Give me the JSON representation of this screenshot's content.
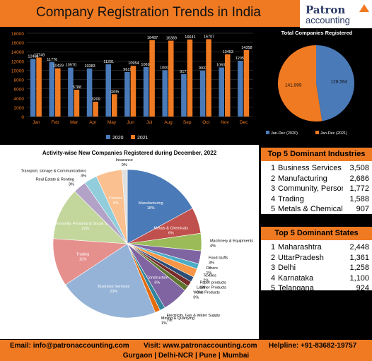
{
  "header": {
    "title": "Company Registration Trends in India",
    "logo_top": "Patron",
    "logo_bottom": "accounting"
  },
  "colors": {
    "orange": "#f07a22",
    "blue": "#4a7ab8"
  },
  "chart_data": [
    {
      "type": "bar",
      "id": "monthly",
      "categories": [
        "Jan",
        "Feb",
        "Mar",
        "Apr",
        "May",
        "Jun",
        "Jul",
        "Aug",
        "Sep",
        "Oct",
        "Nov",
        "Dec"
      ],
      "series": [
        {
          "name": "2020",
          "color": "#4a7ab8",
          "values": [
            12464,
            11776,
            10570,
            10383,
            11281,
            9619,
            10698,
            10004,
            9171,
            9933,
            10607,
            12057
          ]
        },
        {
          "name": "2021",
          "color": "#f07a22",
          "values": [
            12749,
            10429,
            5788,
            3209,
            4835,
            10954,
            16487,
            16389,
            16641,
            16707,
            13453,
            14358
          ]
        }
      ],
      "ylim": [
        0,
        18000
      ],
      "yticks": [
        0,
        2000,
        4000,
        6000,
        8000,
        10000,
        12000,
        14000,
        16000,
        18000
      ],
      "grid": true,
      "legend": "bottom"
    },
    {
      "type": "pie",
      "id": "total",
      "title": "Total Companies Registered",
      "slices": [
        {
          "label": "Jan-Dec (2020)",
          "value": 128564,
          "color": "#4a7ab8"
        },
        {
          "label": "Jan-Dec (2021)",
          "value": 141999,
          "color": "#f07a22"
        }
      ],
      "legend": "bottom"
    },
    {
      "type": "pie",
      "id": "activity",
      "title": "Activity-wise New Companies Registered during December, 2022",
      "slices": [
        {
          "label": "Manufacturing",
          "pct": "18%",
          "color": "#4a7ab8"
        },
        {
          "label": "Metals & Chemicals",
          "pct": "6%",
          "color": "#c0504d"
        },
        {
          "label": "Machinery & Equipments",
          "pct": "4%",
          "color": "#9bbb59"
        },
        {
          "label": "Food stuffs",
          "pct": "3%",
          "color": "#7f64a2"
        },
        {
          "label": "Others",
          "pct": "1%",
          "color": "#4bacc6"
        },
        {
          "label": "Textiles",
          "pct": "2%",
          "color": "#f79646"
        },
        {
          "label": "Paper products",
          "pct": "1%",
          "color": "#2c4d75"
        },
        {
          "label": "Leather Products",
          "pct": "0%",
          "color": "#772c2a"
        },
        {
          "label": "Wood Products",
          "pct": "0%",
          "color": "#5f7530"
        },
        {
          "label": "Construction",
          "pct": "6%",
          "color": "#8064a2"
        },
        {
          "label": "Electricity, Gas & Water Supply",
          "pct": "1%",
          "color": "#31859c"
        },
        {
          "label": "Mining & Quarrying",
          "pct": "1%",
          "color": "#e46c0a"
        },
        {
          "label": "Business Services",
          "pct": "23%",
          "color": "#95b3d7"
        },
        {
          "label": "Trading",
          "pct": "11%",
          "color": "#e6908d"
        },
        {
          "label": "Community, Personal & Social Services",
          "pct": "12%",
          "color": "#c3d69b"
        },
        {
          "label": "Real Estate & Renting",
          "pct": "3%",
          "color": "#b3a2c7"
        },
        {
          "label": "Transport, storage & Communications",
          "pct": "3%",
          "color": "#92cddc"
        },
        {
          "label": "Finance",
          "pct": "6%",
          "color": "#fac08f"
        },
        {
          "label": "Insurance",
          "pct": "0%",
          "color": "#e0e0e0"
        }
      ]
    }
  ],
  "industries": {
    "title": "Top 5 Dominant Industries",
    "rows": [
      {
        "rank": "1",
        "name": "Business Services",
        "value": "3,508"
      },
      {
        "rank": "2",
        "name": "Manufacturing",
        "value": "2,686"
      },
      {
        "rank": "3",
        "name": "Community, Personal & Social Services",
        "value": "1,772"
      },
      {
        "rank": "4",
        "name": "Trading",
        "value": "1,588"
      },
      {
        "rank": "5",
        "name": "Metals & Chemicals",
        "value": "907"
      }
    ]
  },
  "states": {
    "title": "Top 5 Dominant States",
    "rows": [
      {
        "rank": "1",
        "name": "Maharashtra",
        "value": "2,448"
      },
      {
        "rank": "2",
        "name": "UttarPradesh",
        "value": "1,361"
      },
      {
        "rank": "3",
        "name": "Delhi",
        "value": "1,258"
      },
      {
        "rank": "4",
        "name": "Karnataka",
        "value": "1,100"
      },
      {
        "rank": "5",
        "name": "Telangana",
        "value": "924"
      }
    ]
  },
  "footer": {
    "email": "Email: info@patronaccounting.com",
    "website": "Visit: www.patronaccounting.com",
    "helpline": "Helpline: +91-83682-19757",
    "locations": "Gurgaon | Delhi-NCR | Pune | Mumbai"
  }
}
